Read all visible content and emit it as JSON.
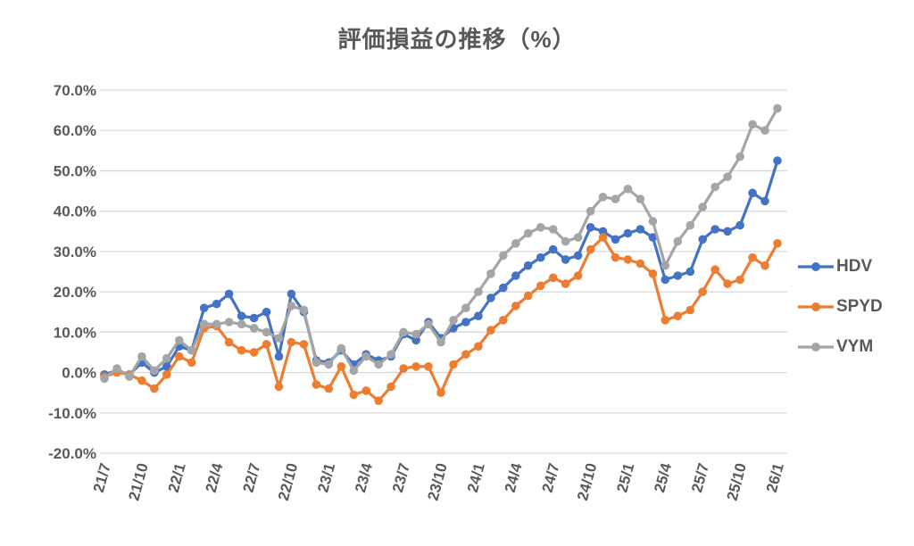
{
  "chart_data": {
    "type": "line",
    "title": "評価損益の推移（%）",
    "xlabel": "",
    "ylabel": "",
    "ylim": [
      -20,
      70
    ],
    "ytick_step": 10,
    "ytick_labels": [
      "70.0%",
      "60.0%",
      "50.0%",
      "40.0%",
      "30.0%",
      "20.0%",
      "10.0%",
      "0.0%",
      "-10.0%",
      "-20.0%"
    ],
    "grid": "horizontal",
    "gridline_color": "#d9d9d9",
    "axis_text_color": "#595959",
    "legend_position": "right",
    "x_tick_every": 3,
    "x_categories": [
      "21/7",
      "21/8",
      "21/9",
      "21/10",
      "21/11",
      "21/12",
      "22/1",
      "22/2",
      "22/3",
      "22/4",
      "22/5",
      "22/6",
      "22/7",
      "22/8",
      "22/9",
      "22/10",
      "22/11",
      "22/12",
      "23/1",
      "23/2",
      "23/3",
      "23/4",
      "23/5",
      "23/6",
      "23/7",
      "23/8",
      "23/9",
      "23/10",
      "23/11",
      "23/12",
      "24/1",
      "24/2",
      "24/3",
      "24/4",
      "24/5",
      "24/6",
      "24/7",
      "24/8",
      "24/9",
      "24/10",
      "24/11",
      "24/12",
      "25/1",
      "25/2",
      "25/3",
      "25/4",
      "25/5",
      "25/6",
      "25/7",
      "25/8",
      "25/9",
      "25/10",
      "25/11",
      "25/12",
      "26/1"
    ],
    "x_tick_labels_shown": [
      "21/7",
      "21/10",
      "22/1",
      "22/4",
      "22/7",
      "22/10",
      "23/1",
      "23/4",
      "23/7",
      "23/10",
      "24/1",
      "24/4",
      "24/7",
      "24/10",
      "25/1",
      "25/4",
      "25/7",
      "25/10",
      "26/1"
    ],
    "series": [
      {
        "name": "HDV",
        "color": "#4472C4",
        "values": [
          -0.5,
          0.5,
          -0.5,
          2.5,
          0,
          1.5,
          6.5,
          5.5,
          16,
          17,
          19.5,
          14,
          13.5,
          15,
          4,
          19.5,
          15,
          3,
          2.5,
          5.5,
          2,
          4.5,
          3,
          4,
          9.5,
          8,
          12.5,
          8.5,
          11,
          12.5,
          14,
          18.5,
          21,
          24,
          26.5,
          28.5,
          30.5,
          28,
          29,
          36,
          35,
          33,
          34.5,
          35.5,
          33.5,
          23,
          24,
          25,
          33,
          35.5,
          35,
          36.5,
          44.5,
          42.5,
          52.5
        ]
      },
      {
        "name": "SPYD",
        "color": "#ED7D31",
        "values": [
          -1,
          0,
          -0.5,
          -2,
          -4,
          -0.5,
          4,
          2.5,
          11,
          11.5,
          7.5,
          5.5,
          5,
          7,
          -3.5,
          7.5,
          7,
          -3,
          -4,
          1.5,
          -5.5,
          -4.5,
          -7,
          -3.5,
          1,
          1.5,
          1.5,
          -5,
          2,
          4.5,
          6.5,
          10.5,
          13,
          16.5,
          19,
          21.5,
          23.5,
          22,
          24,
          30.5,
          33.5,
          28.5,
          28,
          27,
          24.5,
          13,
          14,
          15.5,
          20,
          25.5,
          22,
          23,
          28.5,
          26.5,
          32
        ]
      },
      {
        "name": "VYM",
        "color": "#A5A5A5",
        "values": [
          -1.5,
          1,
          -1,
          4,
          0.5,
          3.5,
          8,
          5.5,
          12,
          12,
          12.5,
          12,
          11,
          10,
          8.5,
          16.5,
          15.5,
          2.5,
          2,
          6,
          0.5,
          4,
          2,
          4.5,
          10,
          9.5,
          12,
          7.5,
          13,
          16,
          20,
          24.5,
          29,
          32,
          34.5,
          36,
          35.5,
          32.5,
          33.5,
          40,
          43.5,
          43,
          45.5,
          43,
          37.5,
          26.5,
          32.5,
          36.5,
          41,
          46,
          48.5,
          53.5,
          61.5,
          60,
          65.5
        ]
      }
    ]
  }
}
